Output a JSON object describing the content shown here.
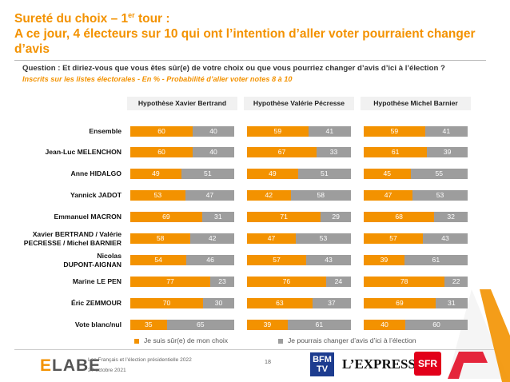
{
  "title": {
    "line1_pre": "Sureté du choix – 1",
    "line1_sup": "er",
    "line1_post": " tour :",
    "line2": "A ce jour, 4 électeurs sur 10 qui ont l’intention d’aller voter pourraient changer d’avis"
  },
  "question": "Question : Et diriez-vous que vous êtes sûr(e) de votre choix ou que vous pourriez changer d’avis d’ici à l’élection ?",
  "subtitle": "Inscrits sur les listes électorales - En % - Probabilité d’aller voter notes 8 à 10",
  "chart_data": {
    "type": "bar",
    "stacked": true,
    "orientation": "horizontal",
    "panels": [
      "Hypothèse Xavier Bertrand",
      "Hypothèse Valérie Pécresse",
      "Hypothèse Michel Barnier"
    ],
    "categories": [
      "Ensemble",
      "Jean-Luc MELENCHON",
      "Anne HIDALGO",
      "Yannick JADOT",
      "Emmanuel MACRON",
      "Xavier BERTRAND / Valérie PECRESSE / Michel BARNIER",
      "Nicolas DUPONT-AIGNAN",
      "Marine LE PEN",
      "Éric ZEMMOUR",
      "Vote blanc/nul"
    ],
    "category_lines": [
      [
        "Ensemble"
      ],
      [
        "Jean-Luc MELENCHON"
      ],
      [
        "Anne HIDALGO"
      ],
      [
        "Yannick JADOT"
      ],
      [
        "Emmanuel MACRON"
      ],
      [
        "Xavier BERTRAND / Valérie",
        "PECRESSE / Michel BARNIER"
      ],
      [
        "Nicolas",
        "DUPONT-AIGNAN"
      ],
      [
        "Marine LE PEN"
      ],
      [
        "Éric ZEMMOUR"
      ],
      [
        "Vote blanc/nul"
      ]
    ],
    "series": [
      {
        "name": "Je suis sûr(e) de mon choix",
        "color": "#f39200",
        "values": [
          [
            60,
            60,
            49,
            53,
            69,
            58,
            54,
            77,
            70,
            35
          ],
          [
            59,
            67,
            49,
            42,
            71,
            47,
            57,
            76,
            63,
            39
          ],
          [
            59,
            61,
            45,
            47,
            68,
            57,
            39,
            78,
            69,
            40
          ]
        ]
      },
      {
        "name": "Je pourrais changer d’avis d’ici à l’élection",
        "color": "#9d9d9d",
        "values": [
          [
            40,
            40,
            51,
            47,
            31,
            42,
            46,
            23,
            30,
            65
          ],
          [
            41,
            33,
            51,
            58,
            29,
            53,
            43,
            24,
            37,
            61
          ],
          [
            41,
            39,
            55,
            53,
            32,
            43,
            61,
            22,
            31,
            60
          ]
        ]
      }
    ],
    "xlim": [
      0,
      100
    ],
    "legend_position": "bottom"
  },
  "footer": {
    "logo": "ELABE",
    "line1": "Les Français et l’élection présidentielle 2022",
    "line2": "27 octobre 2021",
    "page": "18",
    "partners": {
      "bfm": "BFM TV",
      "lexpress": "L’EXPRESS",
      "sfr": "SFR"
    }
  }
}
